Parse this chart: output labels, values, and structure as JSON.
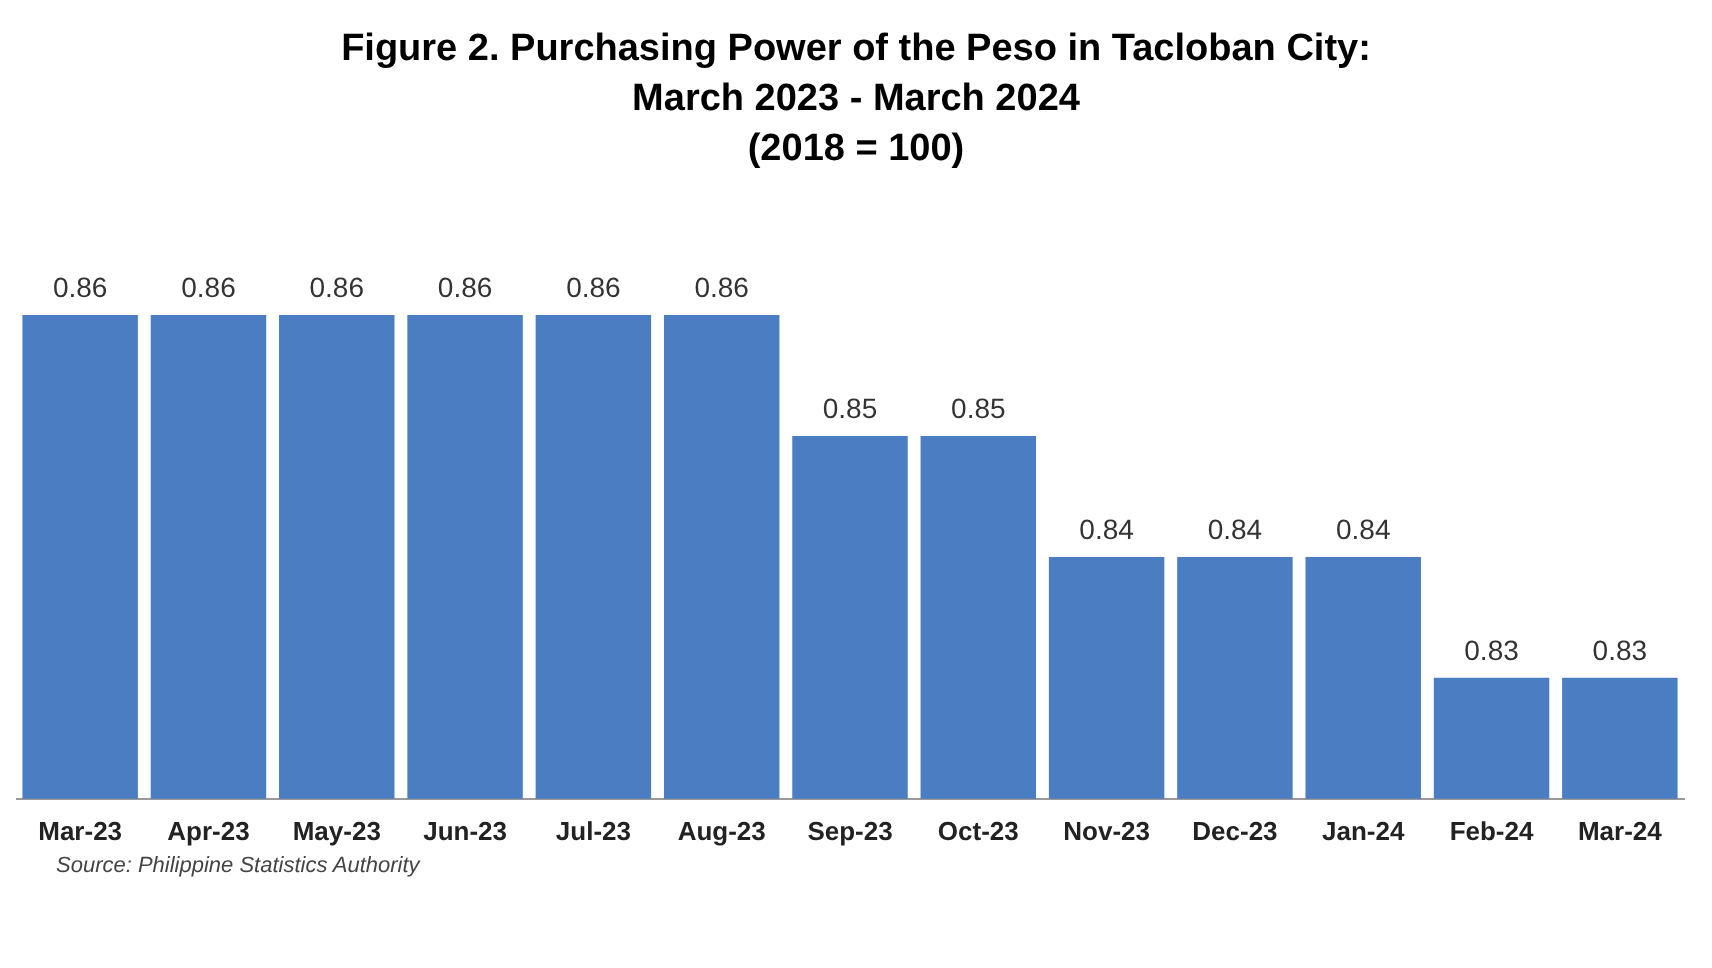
{
  "chart_data": {
    "type": "bar",
    "title": "Figure 2. Purchasing Power of the Peso in Tacloban City: March 2023 - March 2024",
    "subtitle": "(2018 = 100)",
    "categories": [
      "Mar-23",
      "Apr-23",
      "May-23",
      "Jun-23",
      "Jul-23",
      "Aug-23",
      "Sep-23",
      "Oct-23",
      "Nov-23",
      "Dec-23",
      "Jan-24",
      "Feb-24",
      "Mar-24"
    ],
    "values": [
      0.86,
      0.86,
      0.86,
      0.86,
      0.86,
      0.86,
      0.85,
      0.85,
      0.84,
      0.84,
      0.84,
      0.83,
      0.83
    ],
    "color": "#4a7dc2",
    "data_labels": true,
    "grid": false,
    "legend": false,
    "annotations": [
      "Source: Philippine Statistics Authority"
    ]
  }
}
